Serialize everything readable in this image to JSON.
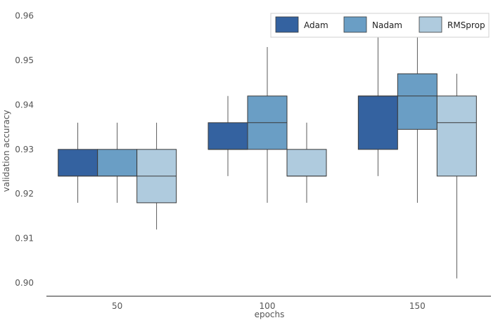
{
  "chart_data": {
    "type": "boxplot",
    "title": "",
    "xlabel": "epochs",
    "ylabel": "validation accuracy",
    "categories": [
      "50",
      "100",
      "150"
    ],
    "ylim": [
      0.897,
      0.962
    ],
    "yticks": [
      0.9,
      0.91,
      0.92,
      0.93,
      0.94,
      0.95,
      0.96
    ],
    "ytick_labels": [
      "0.90",
      "0.91",
      "0.92",
      "0.93",
      "0.94",
      "0.95",
      "0.96"
    ],
    "grid": false,
    "legend_position": "top-right",
    "series": [
      {
        "name": "Adam",
        "color": "#3462a0",
        "boxes": [
          {
            "whisker_low": 0.918,
            "q1": 0.924,
            "median": 0.924,
            "q3": 0.93,
            "whisker_high": 0.936
          },
          {
            "whisker_low": 0.924,
            "q1": 0.93,
            "median": 0.93,
            "q3": 0.936,
            "whisker_high": 0.942
          },
          {
            "whisker_low": 0.924,
            "q1": 0.93,
            "median": 0.942,
            "q3": 0.942,
            "whisker_high": 0.956
          }
        ]
      },
      {
        "name": "Nadam",
        "color": "#6a9ec5",
        "boxes": [
          {
            "whisker_low": 0.918,
            "q1": 0.924,
            "median": 0.924,
            "q3": 0.93,
            "whisker_high": 0.936
          },
          {
            "whisker_low": 0.918,
            "q1": 0.93,
            "median": 0.936,
            "q3": 0.942,
            "whisker_high": 0.953
          },
          {
            "whisker_low": 0.918,
            "q1": 0.9345,
            "median": 0.942,
            "q3": 0.947,
            "whisker_high": 0.956
          }
        ]
      },
      {
        "name": "RMSprop",
        "color": "#afcbde",
        "boxes": [
          {
            "whisker_low": 0.912,
            "q1": 0.918,
            "median": 0.924,
            "q3": 0.93,
            "whisker_high": 0.936
          },
          {
            "whisker_low": 0.918,
            "q1": 0.924,
            "median": 0.924,
            "q3": 0.93,
            "whisker_high": 0.936
          },
          {
            "whisker_low": 0.901,
            "q1": 0.924,
            "median": 0.936,
            "q3": 0.942,
            "whisker_high": 0.947
          }
        ]
      }
    ]
  }
}
